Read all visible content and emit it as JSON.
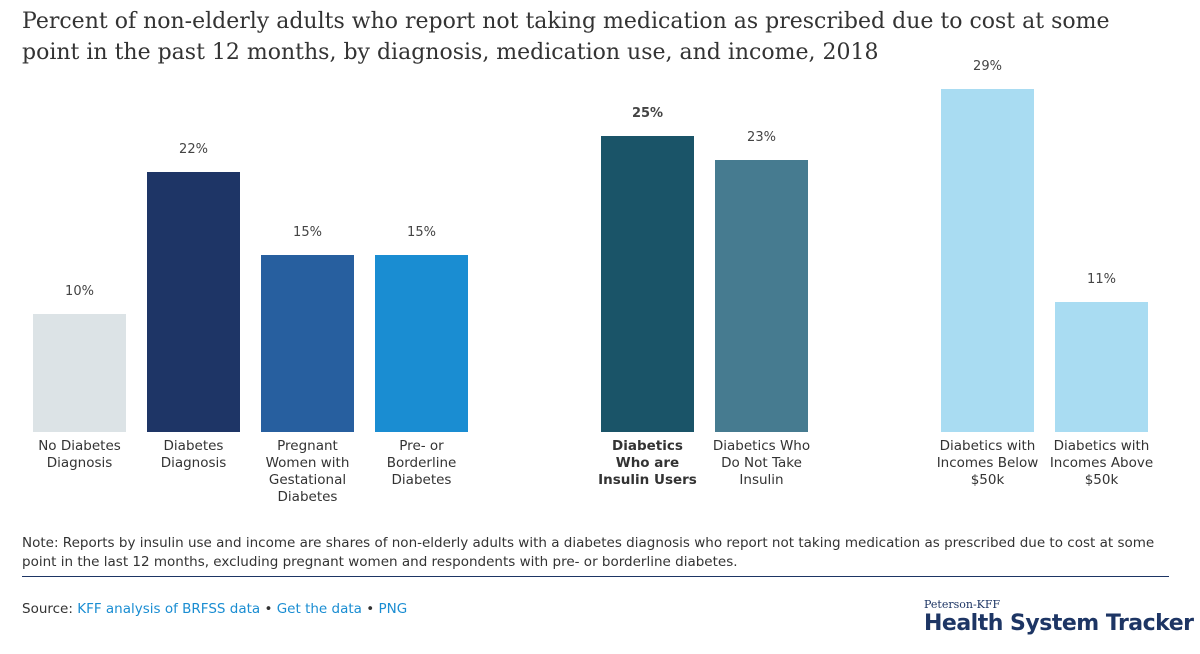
{
  "title": "Percent of non-elderly adults who report not taking medication as prescribed due to cost at some point in the past 12 months, by diagnosis, medication use, and income, 2018",
  "chart_data": [
    {
      "type": "bar",
      "categories": [
        "No Diabetes Diagnosis",
        "Diabetes Diagnosis",
        "Pregnant Women with Gestational Diabetes",
        "Pre- or Borderline Diabetes"
      ],
      "values": [
        10,
        22,
        15,
        15
      ],
      "value_labels": [
        "10%",
        "22%",
        "15%",
        "15%"
      ],
      "colors": [
        "#dce3e6",
        "#1e3566",
        "#275f9f",
        "#1a8dd2"
      ]
    },
    {
      "type": "bar",
      "categories": [
        "Diabetics Who are Insulin Users",
        "Diabetics Who Do Not Take Insulin"
      ],
      "values": [
        25,
        23
      ],
      "value_labels": [
        "25%",
        "23%"
      ],
      "colors": [
        "#1a5468",
        "#467b90"
      ]
    },
    {
      "type": "bar",
      "categories": [
        "Diabetics with Incomes Below $50k",
        "Diabetics with Incomes Above $50k"
      ],
      "values": [
        29,
        11
      ],
      "value_labels": [
        "29%",
        "11%"
      ],
      "colors": [
        "#a9dcf2",
        "#a9dcf2"
      ]
    }
  ],
  "note": "Note: Reports by insulin use and income are shares of non-elderly adults with a diabetes diagnosis who report not taking medication as prescribed due to cost at some point in the last 12 months, excluding pregnant women and respondents with pre- or borderline diabetes.",
  "source": {
    "label": "Source:",
    "separator": "•",
    "links": [
      "KFF analysis of BRFSS data",
      "Get the data",
      "PNG"
    ]
  },
  "logo": {
    "top": "Peterson-KFF",
    "name": "Health System Tracker"
  }
}
